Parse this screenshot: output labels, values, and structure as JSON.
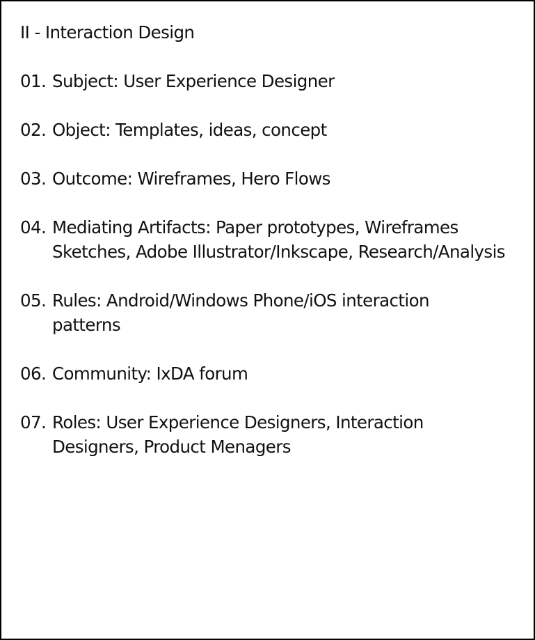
{
  "title": "II - Interaction Design",
  "items": [
    {
      "number": "01.",
      "lines": [
        "Subject: User Experience Designer"
      ]
    },
    {
      "number": "02.",
      "lines": [
        "Object: Templates, ideas, concept"
      ]
    },
    {
      "number": "03.",
      "lines": [
        "Outcome: Wireframes, Hero Flows"
      ]
    },
    {
      "number": "04.",
      "lines": [
        "Mediating Artifacts: Paper prototypes, Wireframes",
        "Sketches, Adobe Illustrator/Inkscape, Research/Analysis"
      ]
    },
    {
      "number": "05.",
      "lines": [
        "Rules: Android/Windows Phone/iOS interaction",
        "patterns"
      ]
    },
    {
      "number": "06.",
      "lines": [
        "Community: IxDA forum"
      ]
    },
    {
      "number": "07.",
      "lines": [
        "Roles: User Experience Designers, Interaction",
        "Designers, Product Menagers"
      ]
    }
  ]
}
